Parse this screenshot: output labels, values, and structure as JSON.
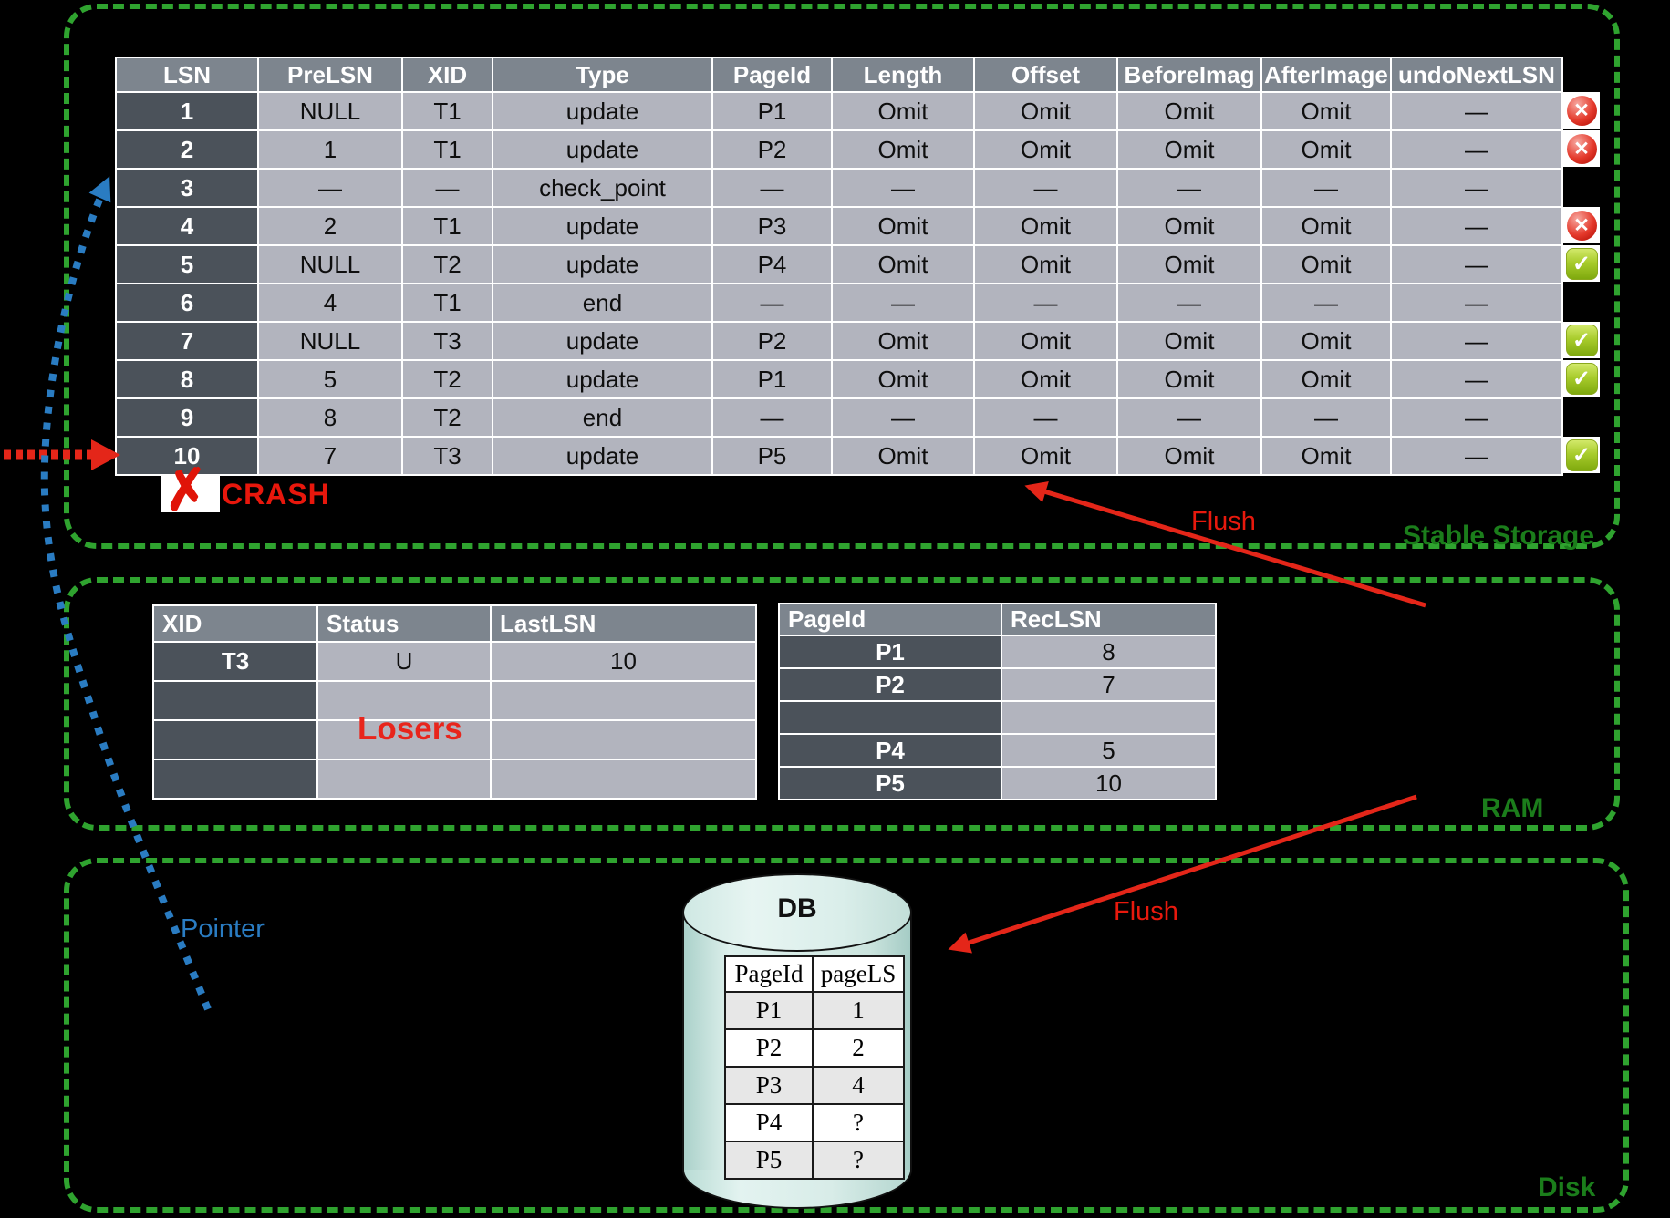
{
  "regions": {
    "stable_storage": {
      "label": "Stable Storage"
    },
    "ram": {
      "label": "RAM"
    },
    "disk": {
      "label": "Disk"
    }
  },
  "annotations": {
    "crash": "CRASH",
    "flush_log": "Flush",
    "flush_db": "Flush",
    "pointer": "Pointer",
    "losers": "Losers"
  },
  "icons": {
    "crossed": "✕",
    "checked": "✓",
    "crash": "✗"
  },
  "colors": {
    "background": "#000000",
    "box_dash_green": "#2fa32f",
    "label_green": "#1b7d1b",
    "table_header_gray": "#7d858e",
    "table_dark_cell": "#4b525a",
    "table_light_cell": "#b2b4be",
    "accent_red": "#e8190d",
    "accent_blue": "#2a7cc2",
    "cylinder_fill": "#d8ece8"
  },
  "log_table": {
    "columns": [
      "LSN",
      "PreLSN",
      "XID",
      "Type",
      "PageId",
      "Length",
      "Offset",
      "BeforeImag",
      "AfterImage",
      "undoNextLSN"
    ],
    "rows": [
      [
        "1",
        "NULL",
        "T1",
        "update",
        "P1",
        "Omit",
        "Omit",
        "Omit",
        "Omit",
        "—"
      ],
      [
        "2",
        "1",
        "T1",
        "update",
        "P2",
        "Omit",
        "Omit",
        "Omit",
        "Omit",
        "—"
      ],
      [
        "3",
        "—",
        "—",
        "check_point",
        "—",
        "—",
        "—",
        "—",
        "—",
        "—"
      ],
      [
        "4",
        "2",
        "T1",
        "update",
        "P3",
        "Omit",
        "Omit",
        "Omit",
        "Omit",
        "—"
      ],
      [
        "5",
        "NULL",
        "T2",
        "update",
        "P4",
        "Omit",
        "Omit",
        "Omit",
        "Omit",
        "—"
      ],
      [
        "6",
        "4",
        "T1",
        "end",
        "—",
        "—",
        "—",
        "—",
        "—",
        "—"
      ],
      [
        "7",
        "NULL",
        "T3",
        "update",
        "P2",
        "Omit",
        "Omit",
        "Omit",
        "Omit",
        "—"
      ],
      [
        "8",
        "5",
        "T2",
        "update",
        "P1",
        "Omit",
        "Omit",
        "Omit",
        "Omit",
        "—"
      ],
      [
        "9",
        "8",
        "T2",
        "end",
        "—",
        "—",
        "—",
        "—",
        "—",
        "—"
      ],
      [
        "10",
        "7",
        "T3",
        "update",
        "P5",
        "Omit",
        "Omit",
        "Omit",
        "Omit",
        "—"
      ]
    ],
    "statuses": [
      "crossed",
      "crossed",
      "none",
      "crossed",
      "checked",
      "none",
      "checked",
      "checked",
      "none",
      "checked"
    ]
  },
  "transaction_table": {
    "columns": [
      "XID",
      "Status",
      "LastLSN"
    ],
    "rows": [
      [
        "T3",
        "U",
        "10"
      ],
      [
        "",
        "",
        ""
      ],
      [
        "",
        "",
        ""
      ],
      [
        "",
        "",
        ""
      ]
    ]
  },
  "dirty_page_table": {
    "columns": [
      "PageId",
      "RecLSN"
    ],
    "rows": [
      [
        "P1",
        "8"
      ],
      [
        "P2",
        "7"
      ],
      [
        "",
        ""
      ],
      [
        "P4",
        "5"
      ],
      [
        "P5",
        "10"
      ]
    ]
  },
  "db": {
    "label": "DB",
    "table": {
      "columns": [
        "PageId",
        "pageLS"
      ],
      "rows": [
        [
          "P1",
          "1"
        ],
        [
          "P2",
          "2"
        ],
        [
          "P3",
          "4"
        ],
        [
          "P4",
          "?"
        ],
        [
          "P5",
          "?"
        ]
      ]
    }
  }
}
